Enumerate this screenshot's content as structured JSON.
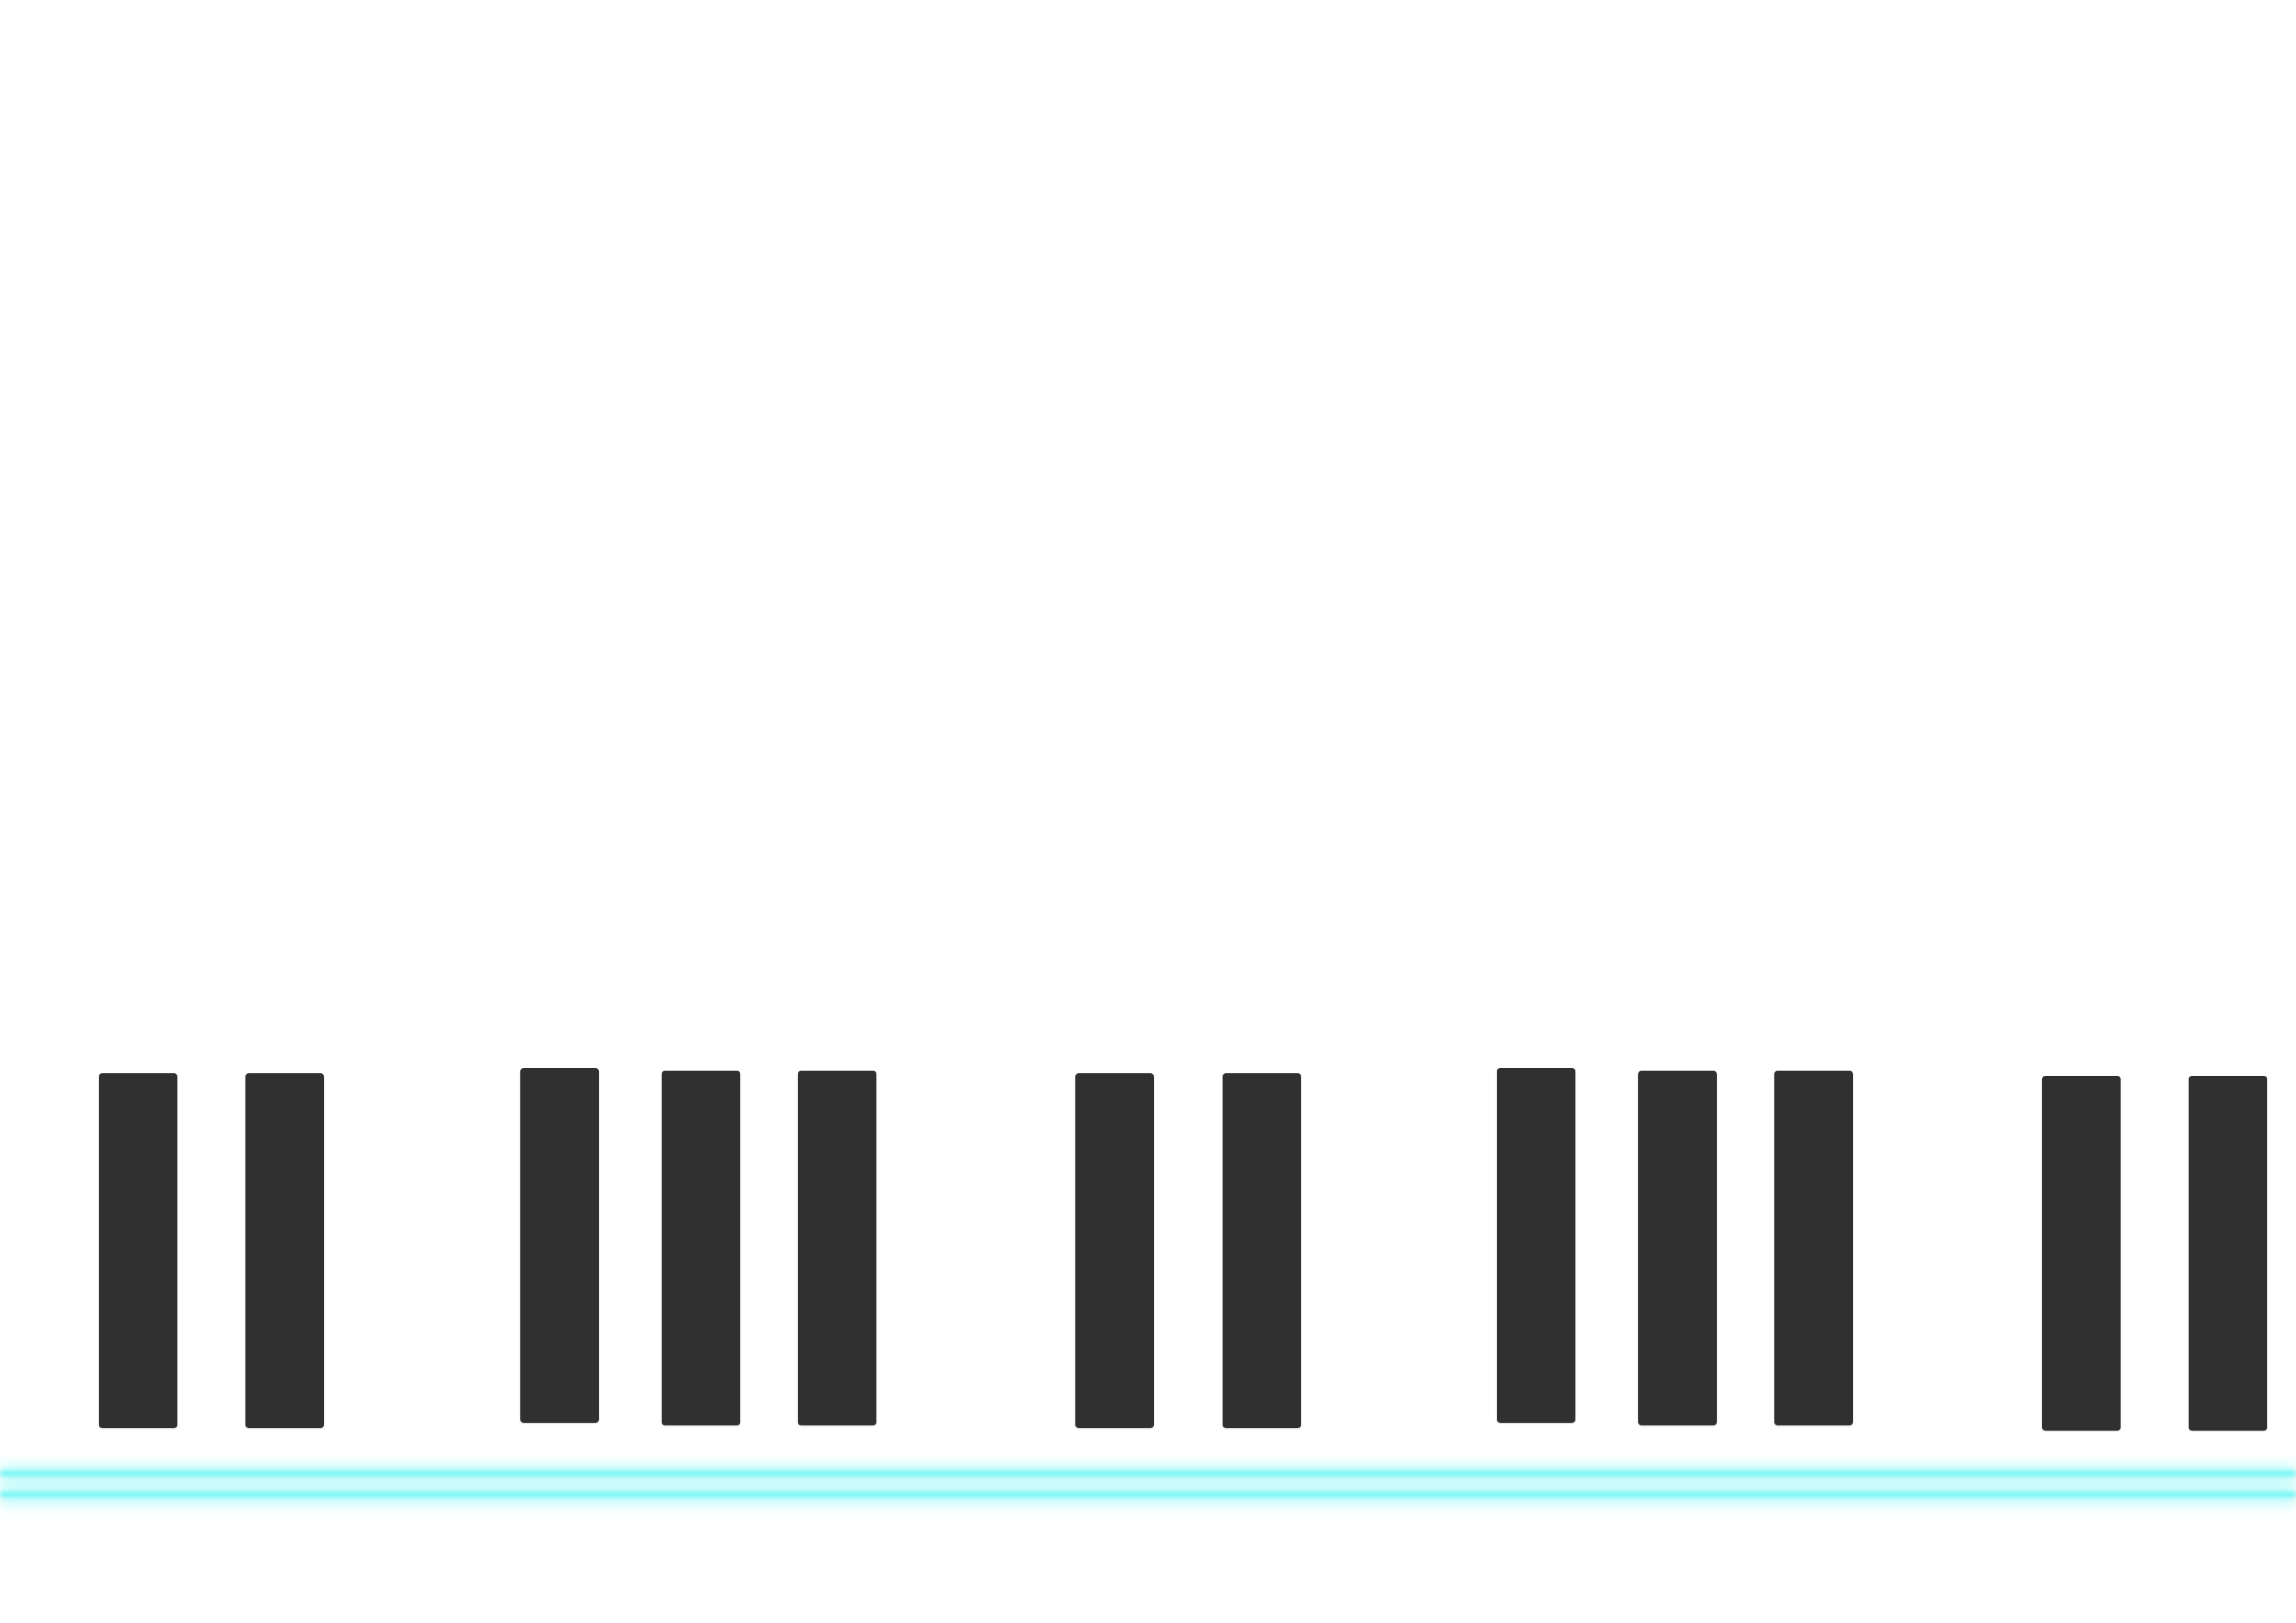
{
  "colors": {
    "background": "#ffffff",
    "key": "#303030",
    "glow": "#7ff6f6"
  },
  "keyboard": {
    "black_key_count": 12,
    "groups": [
      2,
      3,
      2,
      3,
      2
    ]
  }
}
